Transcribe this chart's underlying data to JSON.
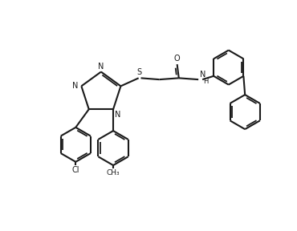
{
  "background_color": "#ffffff",
  "line_color": "#1a1a1a",
  "line_width": 1.5,
  "figsize": [
    3.7,
    2.88
  ],
  "dpi": 100,
  "xlim": [
    0,
    10
  ],
  "ylim": [
    0,
    8
  ]
}
